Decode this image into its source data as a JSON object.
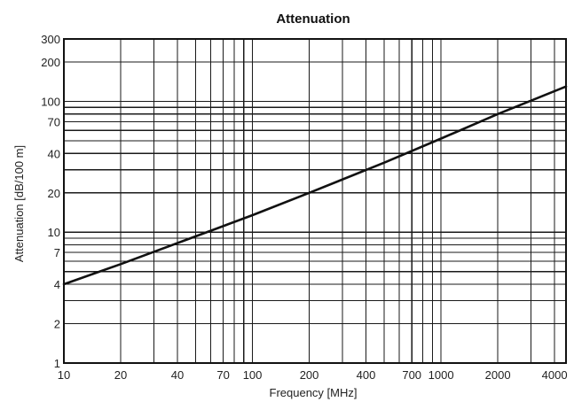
{
  "chart_data": {
    "type": "line",
    "title": "Attenuation",
    "xlabel": "Frequency [MHz]",
    "ylabel": "Attenuation [dB/100 m]",
    "x_scale": "log",
    "y_scale": "log",
    "xlim": [
      10,
      4600
    ],
    "ylim": [
      1,
      300
    ],
    "grid": true,
    "x_grid_lines": [
      10,
      20,
      30,
      40,
      50,
      60,
      70,
      80,
      90,
      100,
      200,
      300,
      400,
      500,
      600,
      700,
      800,
      900,
      1000,
      2000,
      3000,
      4000
    ],
    "y_grid_lines": [
      1,
      2,
      3,
      4,
      5,
      6,
      7,
      8,
      9,
      10,
      20,
      30,
      40,
      50,
      60,
      70,
      80,
      90,
      100,
      200,
      300
    ],
    "x_ticks": [
      {
        "value": 10,
        "label": "10"
      },
      {
        "value": 20,
        "label": "20"
      },
      {
        "value": 40,
        "label": "40"
      },
      {
        "value": 70,
        "label": "70"
      },
      {
        "value": 100,
        "label": "100"
      },
      {
        "value": 200,
        "label": "200"
      },
      {
        "value": 400,
        "label": "400"
      },
      {
        "value": 700,
        "label": "700"
      },
      {
        "value": 1000,
        "label": "1000"
      },
      {
        "value": 2000,
        "label": "2000"
      },
      {
        "value": 4000,
        "label": "4000"
      }
    ],
    "y_ticks": [
      {
        "value": 1,
        "label": "1"
      },
      {
        "value": 2,
        "label": "2"
      },
      {
        "value": 4,
        "label": "4"
      },
      {
        "value": 7,
        "label": "7"
      },
      {
        "value": 10,
        "label": "10"
      },
      {
        "value": 20,
        "label": "20"
      },
      {
        "value": 40,
        "label": "40"
      },
      {
        "value": 70,
        "label": "70"
      },
      {
        "value": 100,
        "label": "100"
      },
      {
        "value": 200,
        "label": "200"
      },
      {
        "value": 300,
        "label": "300"
      }
    ],
    "series": [
      {
        "color": "#111111",
        "x": [
          10,
          20,
          50,
          100,
          200,
          500,
          1000,
          2000,
          4600
        ],
        "y": [
          4.0,
          5.7,
          9.3,
          13.5,
          20,
          34,
          52,
          80,
          130
        ]
      }
    ]
  }
}
